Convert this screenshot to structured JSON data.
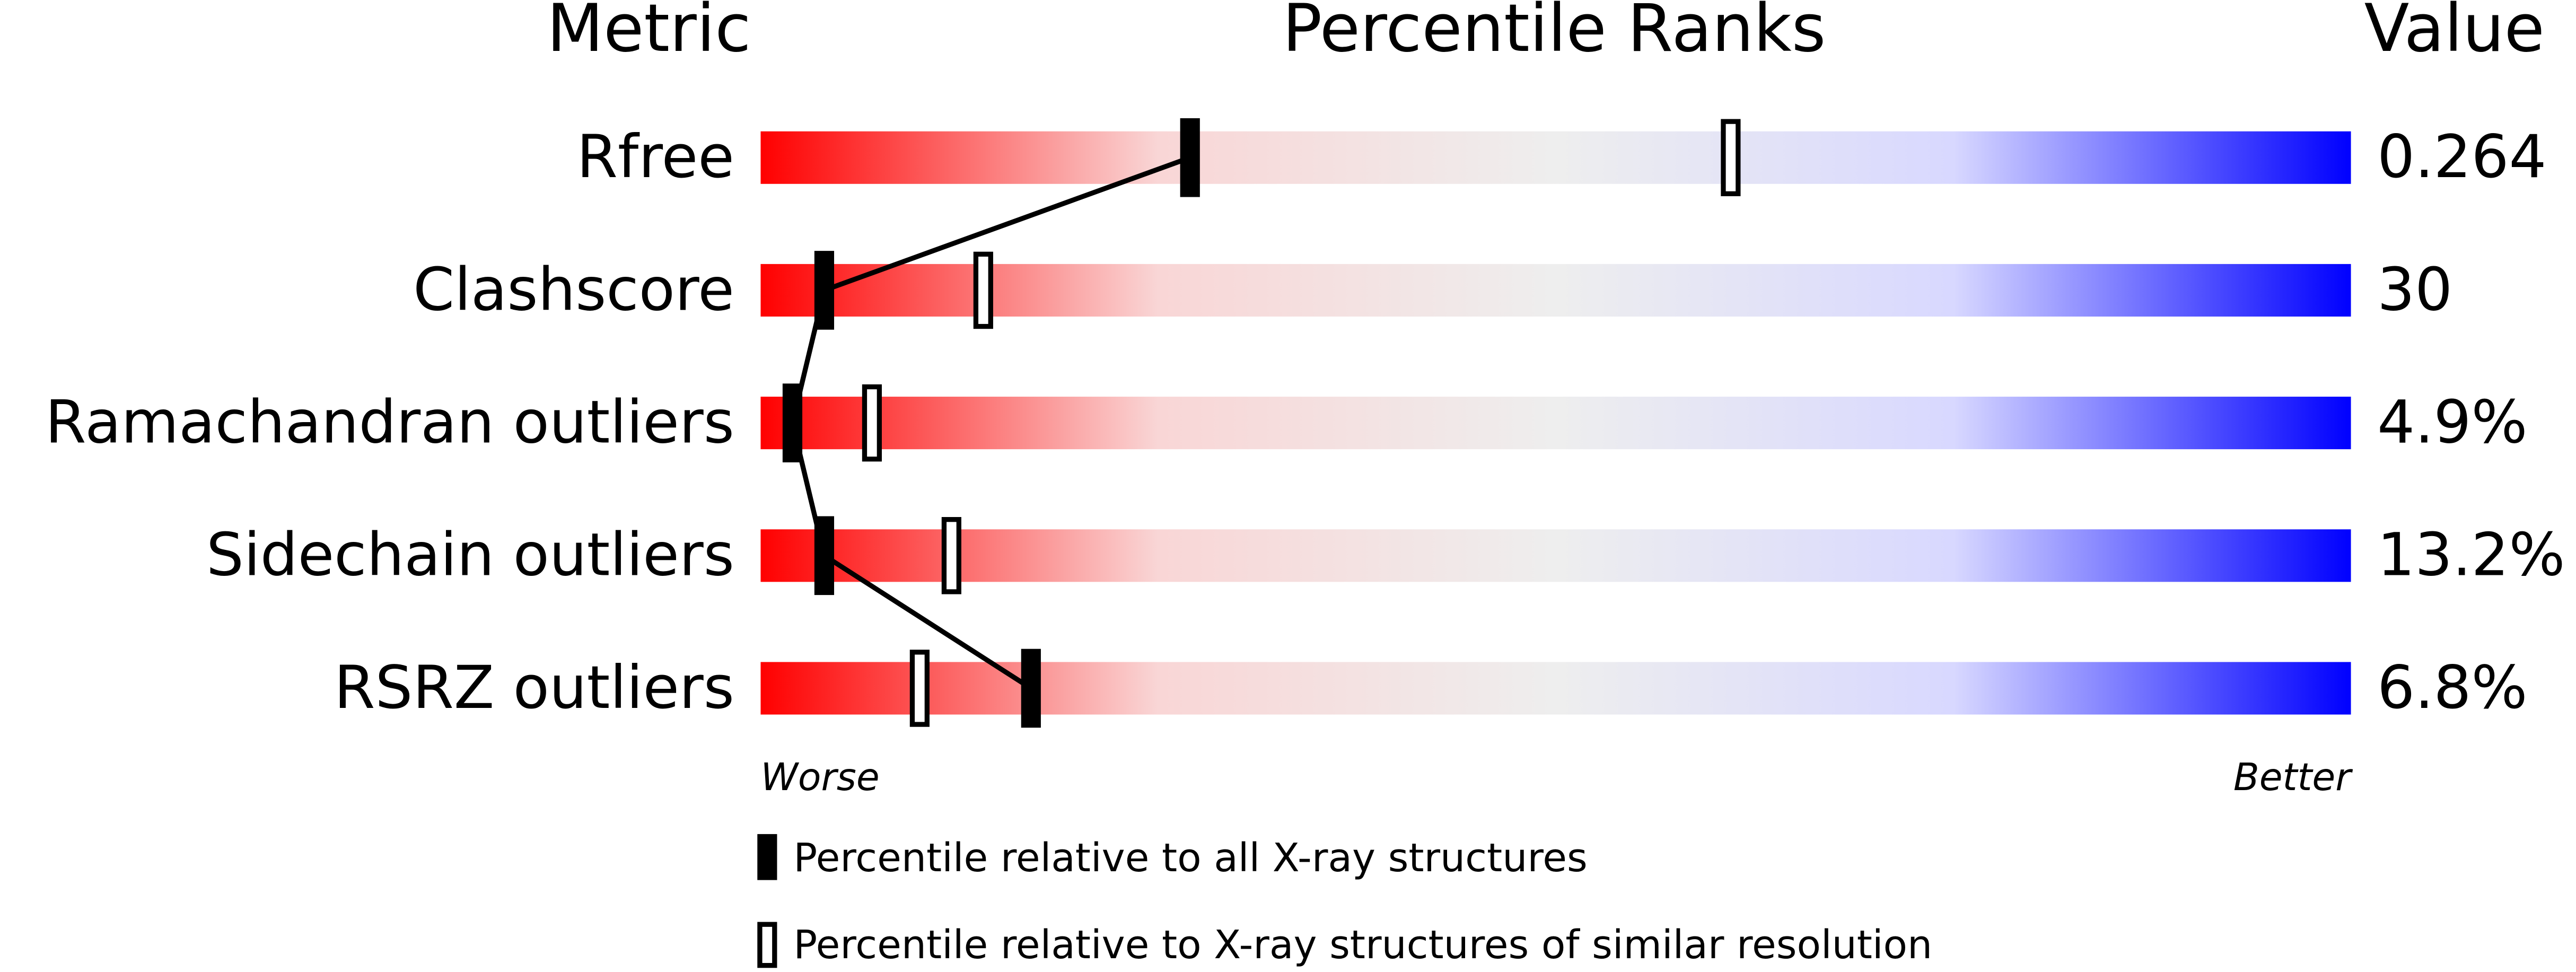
{
  "chart_data": {
    "type": "percentile",
    "headers": [
      "Metric",
      "Percentile Ranks",
      "Value"
    ],
    "categories": [
      "Rfree",
      "Clashscore",
      "Ramachandran outliers",
      "Sidechain outliers",
      "RSRZ outliers"
    ],
    "value_labels": [
      "0.264",
      "30",
      "4.9%",
      "13.2%",
      "6.8%"
    ],
    "series": [
      {
        "name": "Percentile relative to all X-ray structures",
        "color": "#000000",
        "values": [
          27,
          4,
          2,
          4,
          17
        ]
      },
      {
        "name": "Percentile relative to X-ray structures of similar resolution",
        "color": "#000000",
        "values": [
          61,
          14,
          7,
          12,
          10
        ]
      }
    ],
    "xlim": [
      0,
      100
    ],
    "axis_labels": [
      "Worse",
      "Better"
    ],
    "gradient": [
      "#ff0000",
      "#f9d6d6",
      "#eeeeee",
      "#d8d8ff",
      "#0000ff"
    ]
  }
}
